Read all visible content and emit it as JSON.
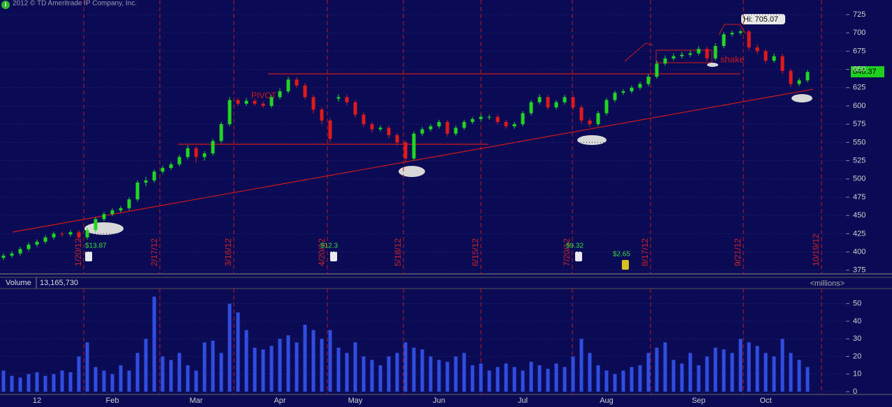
{
  "chart_data": [
    {
      "type": "candlestick",
      "copyright": "2012 © TD Ameritrade IP Company, Inc.",
      "high_label": "Hi: 705.07",
      "last_price": 646.37,
      "note_pivot": "PIVOT",
      "note_shake": "shake",
      "expirations": [
        "1/20/12",
        "2/17/12",
        "3/16/12",
        "4/20/12",
        "5/18/12",
        "6/15/12",
        "7/20/12",
        "8/17/12",
        "9/21/12",
        "10/19/12"
      ],
      "events": [
        "$13.87",
        "$12.3",
        "$9.32",
        "$2.65"
      ],
      "up_color": "#22d622",
      "down_color": "#e01a1a",
      "ylim": [
        370,
        745
      ],
      "yticks": [
        375,
        400,
        425,
        450,
        475,
        500,
        525,
        550,
        575,
        600,
        625,
        650,
        675,
        700,
        725
      ],
      "open": [
        392,
        395,
        398,
        404,
        410,
        414,
        420,
        425,
        424,
        427,
        420,
        430,
        445,
        452,
        457,
        460,
        472,
        495,
        498,
        510,
        515,
        520,
        530,
        542,
        530,
        535,
        552,
        575,
        608,
        603,
        607,
        603,
        600,
        612,
        620,
        636,
        628,
        612,
        595,
        580,
        610,
        612,
        605,
        588,
        575,
        568,
        570,
        560,
        550,
        528,
        562,
        568,
        572,
        578,
        562,
        570,
        578,
        582,
        585,
        585,
        578,
        572,
        575,
        590,
        605,
        612,
        598,
        605,
        612,
        598,
        580,
        575,
        590,
        608,
        618,
        620,
        625,
        630,
        640,
        658,
        665,
        668,
        670,
        672,
        678,
        665,
        682,
        698,
        700,
        702,
        680,
        675,
        662,
        668,
        648,
        630,
        635
      ],
      "high": [
        398,
        401,
        407,
        413,
        417,
        423,
        428,
        428,
        430,
        430,
        433,
        448,
        455,
        460,
        463,
        475,
        498,
        503,
        513,
        518,
        523,
        533,
        546,
        545,
        538,
        555,
        578,
        612,
        611,
        611,
        610,
        606,
        615,
        624,
        640,
        639,
        631,
        615,
        598,
        583,
        616,
        615,
        608,
        591,
        578,
        573,
        573,
        563,
        553,
        565,
        571,
        575,
        581,
        581,
        573,
        581,
        585,
        589,
        588,
        588,
        581,
        578,
        593,
        608,
        616,
        615,
        608,
        615,
        615,
        601,
        583,
        593,
        611,
        621,
        623,
        628,
        633,
        644,
        662,
        669,
        672,
        674,
        676,
        682,
        681,
        686,
        701,
        703,
        705.07,
        704,
        684,
        678,
        672,
        671,
        651,
        638,
        649
      ],
      "low": [
        389,
        392,
        395,
        401,
        407,
        411,
        417,
        421,
        421,
        416,
        417,
        427,
        442,
        449,
        454,
        457,
        469,
        490,
        495,
        507,
        512,
        517,
        527,
        522,
        525,
        532,
        549,
        572,
        600,
        600,
        600,
        597,
        597,
        609,
        617,
        625,
        609,
        590,
        575,
        550,
        606,
        601,
        584,
        571,
        564,
        565,
        556,
        546,
        522,
        525,
        559,
        565,
        569,
        558,
        559,
        567,
        575,
        579,
        581,
        575,
        569,
        569,
        572,
        587,
        602,
        595,
        595,
        602,
        594,
        576,
        571,
        572,
        587,
        605,
        615,
        617,
        622,
        627,
        637,
        655,
        662,
        665,
        667,
        669,
        661,
        662,
        679,
        695,
        697,
        676,
        671,
        658,
        659,
        644,
        626,
        627,
        632
      ],
      "close": [
        395,
        398,
        404,
        410,
        414,
        420,
        425,
        424,
        427,
        420,
        430,
        445,
        452,
        457,
        460,
        472,
        495,
        498,
        510,
        515,
        520,
        530,
        542,
        530,
        535,
        552,
        575,
        608,
        603,
        607,
        603,
        600,
        612,
        620,
        636,
        628,
        612,
        595,
        580,
        555,
        612,
        605,
        588,
        575,
        568,
        570,
        560,
        550,
        528,
        562,
        568,
        572,
        578,
        562,
        570,
        578,
        582,
        585,
        585,
        578,
        572,
        575,
        590,
        605,
        612,
        598,
        605,
        612,
        598,
        580,
        575,
        590,
        608,
        618,
        620,
        625,
        630,
        640,
        658,
        665,
        668,
        670,
        672,
        678,
        665,
        682,
        698,
        700,
        702,
        680,
        675,
        662,
        668,
        648,
        630,
        635,
        646.37
      ]
    },
    {
      "type": "bar",
      "title": "Volume",
      "current_volume": "13,165,730",
      "unit_label": "<millions>",
      "color": "#2f4ee0",
      "ylim": [
        0,
        57
      ],
      "yticks": [
        0,
        10,
        20,
        30,
        40,
        50
      ],
      "categories": [
        null,
        null,
        null,
        null,
        "12",
        null,
        null,
        null,
        null,
        null,
        null,
        null,
        null,
        "Feb",
        null,
        null,
        null,
        null,
        null,
        null,
        null,
        null,
        null,
        "Mar",
        null,
        null,
        null,
        null,
        null,
        null,
        null,
        null,
        null,
        "Apr",
        null,
        null,
        null,
        null,
        null,
        null,
        null,
        null,
        "May",
        null,
        null,
        null,
        null,
        null,
        null,
        null,
        null,
        null,
        "Jun",
        null,
        null,
        null,
        null,
        null,
        null,
        null,
        null,
        null,
        "Jul",
        null,
        null,
        null,
        null,
        null,
        null,
        null,
        null,
        null,
        "Aug",
        null,
        null,
        null,
        null,
        null,
        null,
        null,
        null,
        null,
        null,
        "Sep",
        null,
        null,
        null,
        null,
        null,
        null,
        null,
        "Oct",
        null,
        null,
        null,
        null,
        null
      ],
      "values": [
        12,
        9,
        8,
        10,
        11,
        9,
        10,
        12,
        11,
        20,
        28,
        14,
        12,
        10,
        15,
        12,
        22,
        30,
        54,
        20,
        18,
        22,
        15,
        12,
        28,
        29,
        22,
        50,
        45,
        35,
        25,
        24,
        26,
        30,
        32,
        28,
        38,
        35,
        30,
        35,
        25,
        22,
        28,
        20,
        18,
        15,
        20,
        22,
        28,
        25,
        24,
        20,
        18,
        17,
        20,
        22,
        15,
        16,
        12,
        14,
        16,
        14,
        12,
        17,
        15,
        13,
        16,
        14,
        20,
        30,
        22,
        15,
        12,
        10,
        12,
        14,
        15,
        22,
        25,
        28,
        18,
        16,
        22,
        15,
        20,
        25,
        24,
        22,
        30,
        28,
        26,
        22,
        20,
        30,
        22,
        18,
        14
      ]
    }
  ]
}
